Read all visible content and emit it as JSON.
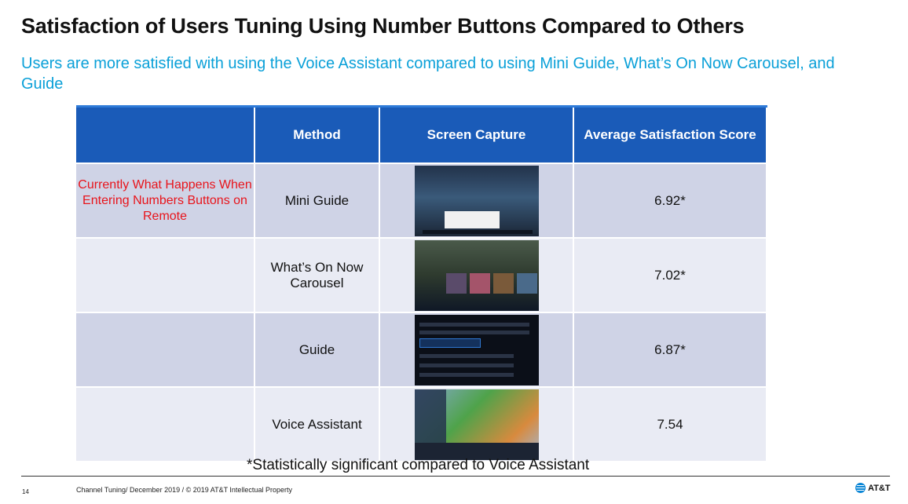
{
  "title": "Satisfaction of Users Tuning Using Number Buttons Compared to Others",
  "subtitle": "Users are more satisfied with using the Voice Assistant compared  to using Mini Guide, What’s On Now Carousel, and Guide",
  "table": {
    "headers": [
      "",
      "Method",
      "Screen Capture",
      "Average Satisfaction Score"
    ],
    "rows": [
      {
        "note": "Currently What Happens When Entering Numbers Buttons on Remote",
        "method": "Mini Guide",
        "capture": "mini-guide-screenshot",
        "score": "6.92*"
      },
      {
        "note": "",
        "method": "What’s On Now Carousel",
        "capture": "whats-on-now-carousel-screenshot",
        "score": "7.02*"
      },
      {
        "note": "",
        "method": "Guide",
        "capture": "guide-screenshot",
        "score": "6.87*"
      },
      {
        "note": "",
        "method": "Voice Assistant",
        "capture": "voice-assistant-screenshot",
        "score": "7.54"
      }
    ]
  },
  "footnote": "*Statistically significant compared to Voice Assistant",
  "footer": {
    "page_number": "14",
    "text": "Channel Tuning/ December 2019 / © 2019 AT&T Intellectual Property",
    "brand": "AT&T"
  },
  "colors": {
    "header_bg": "#1a5bb8",
    "note_red": "#e8141b",
    "subtitle_blue": "#0aa0d8"
  }
}
